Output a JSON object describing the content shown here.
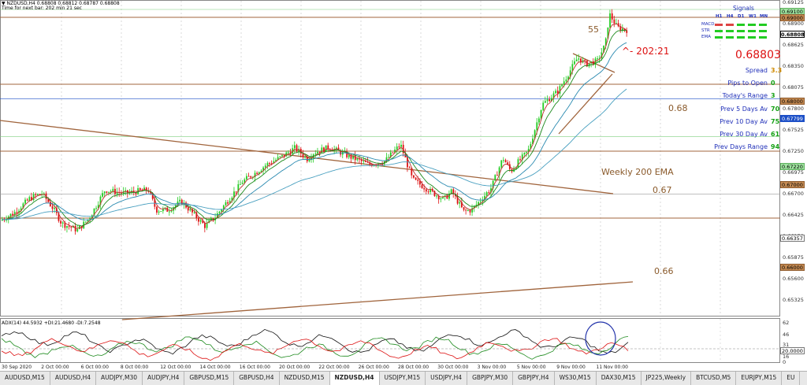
{
  "header": {
    "line1": "▼ NZDUSD,H4  0.68808 0.68812 0.68787 0.68808",
    "line2": "Time for next bar: 202 min 21 sec"
  },
  "price_axis": {
    "ticks": [
      "0.69125",
      "0.68900",
      "0.68625",
      "0.68350",
      "0.68075",
      "0.67800",
      "0.67525",
      "0.67250",
      "0.66975",
      "0.66700",
      "0.66425",
      "0.66150",
      "0.65875",
      "0.65600",
      "0.65325"
    ],
    "tags": {
      "top_green": "0.69100",
      "r_690": "0.69000",
      "current": "0.68808",
      "r_680": "0.68000",
      "blue": "0.67799",
      "green_722": "0.67220",
      "r_670": "0.67000",
      "grey_635": "0.66357",
      "r_660": "0.66000"
    }
  },
  "adx": {
    "label": "ADX(14) 44.5932 +DI:21.4680 -DI:7.2548",
    "ticks": [
      "62",
      "46",
      "31",
      "20.0000",
      "16",
      "0"
    ],
    "level": 20
  },
  "time_axis": [
    "30 Sep 2020",
    "2 Oct 00:00",
    "6 Oct 00:00",
    "8 Oct 00:00",
    "12 Oct 00:00",
    "14 Oct 00:00",
    "16 Oct 00:00",
    "20 Oct 00:00",
    "22 Oct 00:00",
    "26 Oct 00:00",
    "28 Oct 00:00",
    "30 Oct 00:00",
    "3 Nov 00:00",
    "5 Nov 00:00",
    "9 Nov 00:00",
    "11 Nov 00:00"
  ],
  "annotations": {
    "n55": "55",
    "timer": "^- 202:21",
    "l068": "0.68",
    "wema": "Weekly 200 EMA",
    "l067": "0.67",
    "l066": "0.66"
  },
  "panel": {
    "title": "Signals",
    "tf": [
      "H1",
      "H4",
      "D1",
      "W1",
      "MN"
    ],
    "rows": [
      "MACD",
      "STR",
      "EMA"
    ],
    "price": "0.68803",
    "stats": [
      {
        "label": "Spread",
        "value": "3.3",
        "color": "#d08a00"
      },
      {
        "label": "Pips to Open",
        "value": "0",
        "color": "#14a014"
      },
      {
        "label": "Today's Range",
        "value": "3",
        "color": "#14a014"
      },
      {
        "label": "Prev 5 Days Av",
        "value": "70",
        "color": "#14a014"
      },
      {
        "label": "Prev 10 Day Av",
        "value": "75",
        "color": "#14a014"
      },
      {
        "label": "Prev 30 Day Av",
        "value": "61",
        "color": "#14a014"
      },
      {
        "label": "Prev Days Range",
        "value": "94",
        "color": "#14a014"
      }
    ]
  },
  "tabs": [
    "AUDUSD,M15",
    "AUDUSD,H4",
    "AUDJPY,M30",
    "AUDJPY,H4",
    "GBPUSD,M15",
    "GBPUSD,H4",
    "NZDUSD,M15",
    "NZDUSD,H4",
    "USDJPY,M15",
    "USDJPY,H4",
    "GBPJPY,M30",
    "GBPJPY,H4",
    "WS30,M15",
    "DAX30,M15",
    "JP225,Weekly",
    "BTCUSD,M5",
    "EURJPY,M15",
    "EU"
  ],
  "active_tab": "NZDUSD,H4",
  "colors": {
    "bull": "#22cc22",
    "bear": "#dd1111",
    "line_brown": "#a0643c",
    "ema_fast": "#c03030",
    "ema_mid": "#1c8a1c",
    "ema_slow": "#2a8ab0",
    "ema_long": "#4aa0c0"
  }
}
